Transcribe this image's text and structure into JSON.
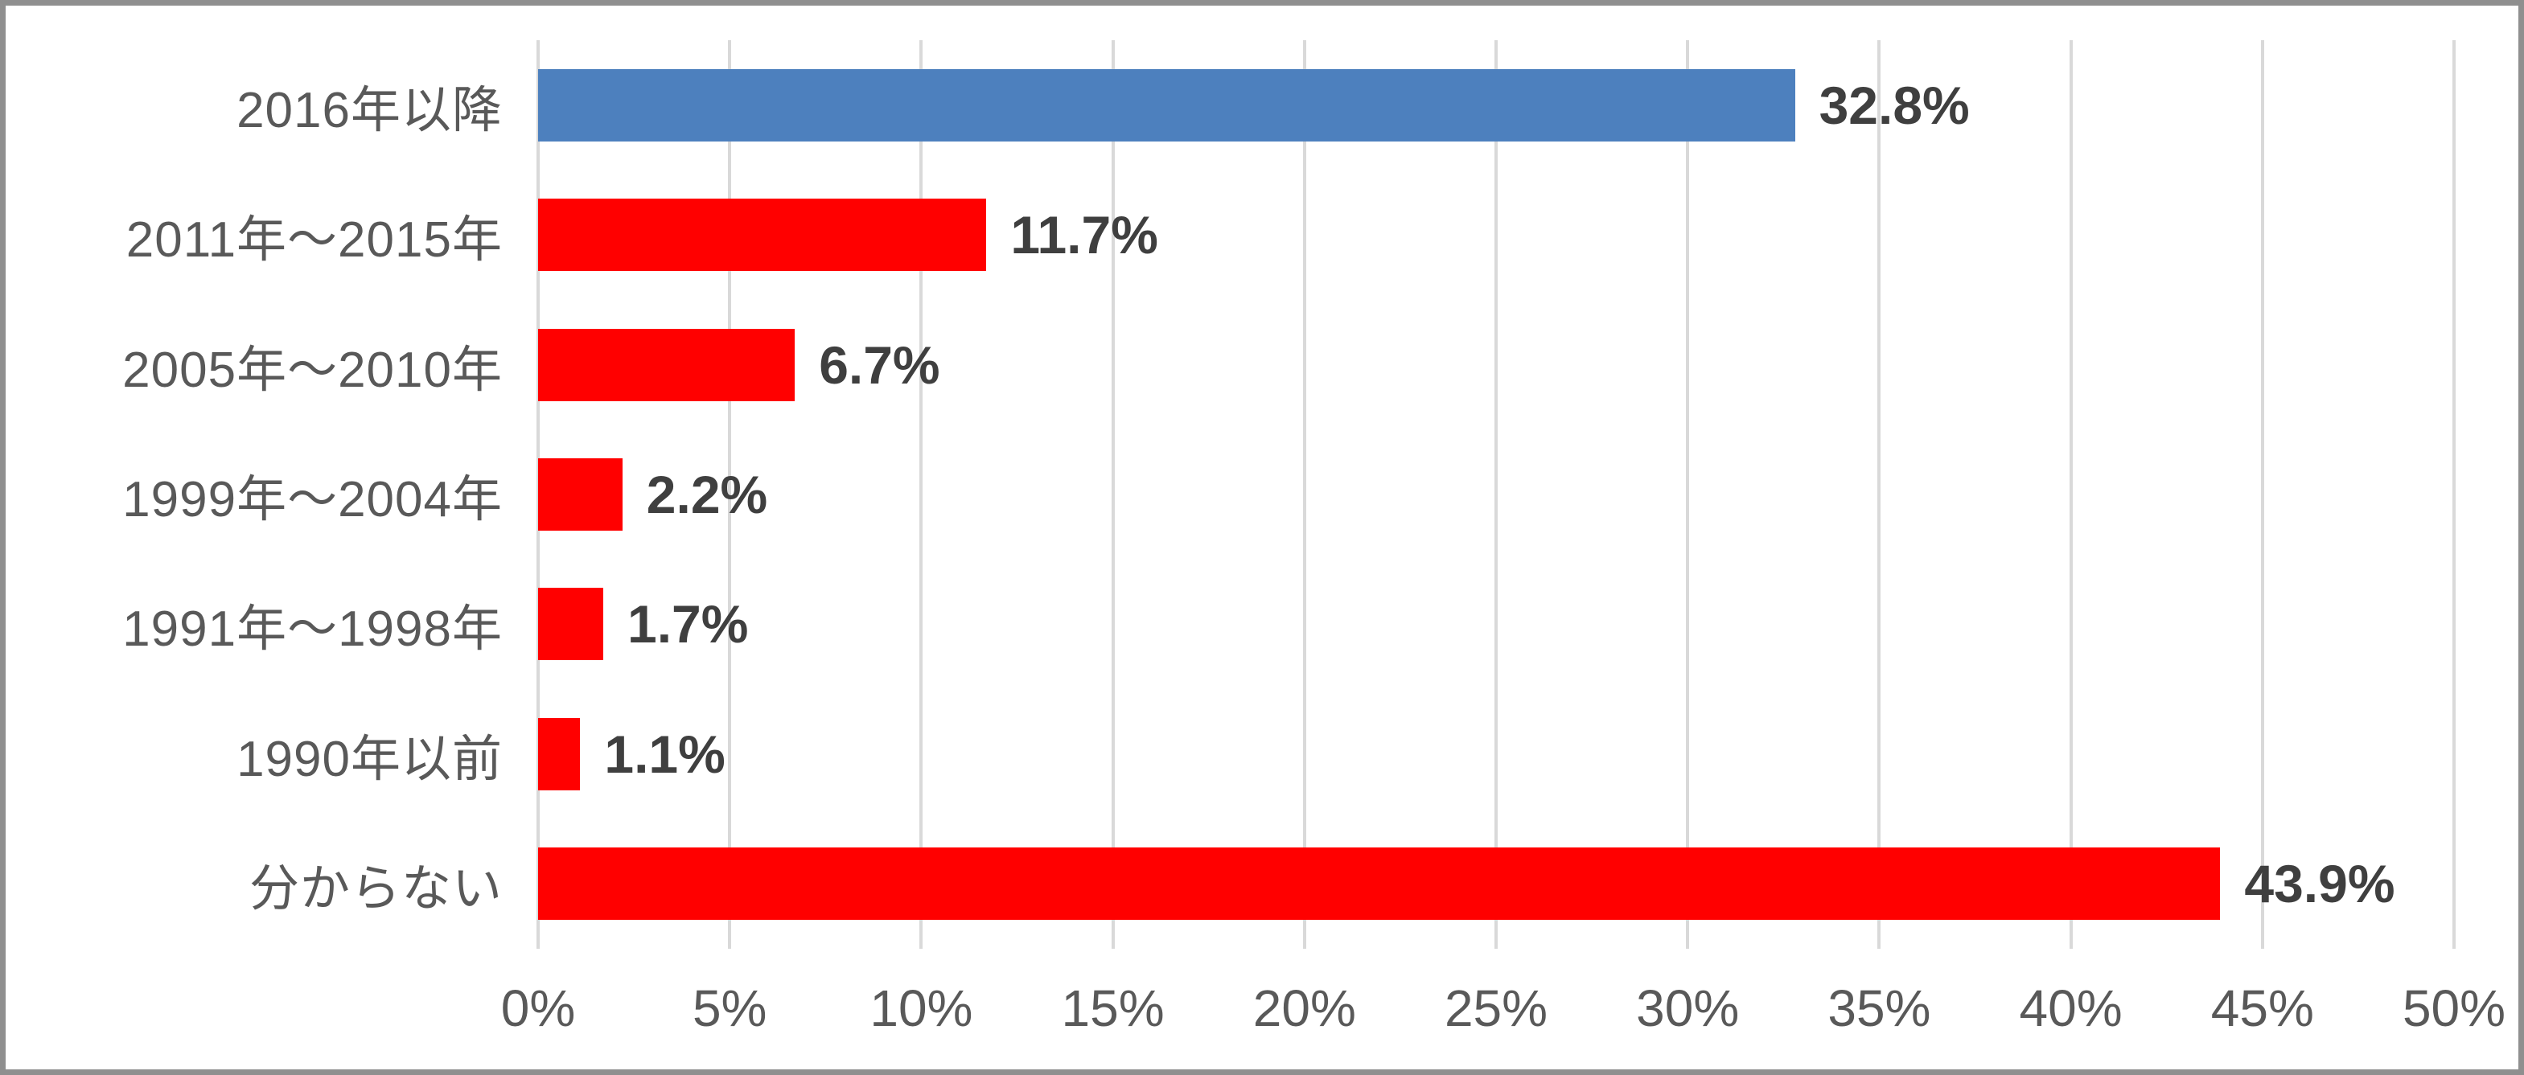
{
  "chart_data": {
    "type": "bar",
    "orientation": "horizontal",
    "title": "",
    "xlabel": "",
    "ylabel": "",
    "xlim": [
      0,
      50
    ],
    "grid": true,
    "legend": "none",
    "categories": [
      "2016年以降",
      "2011年～2015年",
      "2005年～2010年",
      "1999年～2004年",
      "1991年～1998年",
      "1990年以前",
      "分からない"
    ],
    "values": [
      32.8,
      11.7,
      6.7,
      2.2,
      1.7,
      1.1,
      43.9
    ],
    "value_labels": [
      "32.8%",
      "11.7%",
      "6.7%",
      "2.2%",
      "1.7%",
      "1.1%",
      "43.9%"
    ],
    "bar_colors": [
      "#4d80be",
      "#ff0000",
      "#ff0000",
      "#ff0000",
      "#ff0000",
      "#ff0000",
      "#ff0000"
    ],
    "x_ticks": [
      "0%",
      "5%",
      "10%",
      "15%",
      "20%",
      "25%",
      "30%",
      "35%",
      "40%",
      "45%",
      "50%"
    ],
    "x_tick_values": [
      0,
      5,
      10,
      15,
      20,
      25,
      30,
      35,
      40,
      45,
      50
    ]
  },
  "colors": {
    "gridline": "#d9d9d9",
    "category_text": "#595959",
    "value_text": "#3f3f3f",
    "axis_text": "#595959",
    "frame_border": "#8f8f8f",
    "background": "#ffffff"
  }
}
